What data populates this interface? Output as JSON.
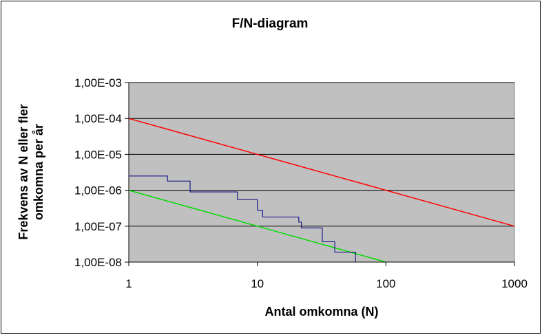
{
  "chart_data": {
    "type": "line",
    "title": "F/N-diagram",
    "xlabel": "Antal omkomna (N)",
    "ylabel_line1": "Frekvens av N eller fler",
    "ylabel_line2": "omkomna per år",
    "x_scale": "log",
    "y_scale": "log",
    "xlim": [
      1,
      1000
    ],
    "ylim": [
      1e-08,
      0.001
    ],
    "x_ticks": [
      {
        "value": 1,
        "label": "1"
      },
      {
        "value": 10,
        "label": "10"
      },
      {
        "value": 100,
        "label": "100"
      },
      {
        "value": 1000,
        "label": "1000"
      }
    ],
    "y_ticks": [
      {
        "value": 0.001,
        "label": "1,00E-03"
      },
      {
        "value": 0.0001,
        "label": "1,00E-04"
      },
      {
        "value": 1e-05,
        "label": "1,00E-05"
      },
      {
        "value": 1e-06,
        "label": "1,00E-06"
      },
      {
        "value": 1e-07,
        "label": "1,00E-07"
      },
      {
        "value": 1e-08,
        "label": "1,00E-08"
      }
    ],
    "grid": "horizontal",
    "plot_background": "#c0c0c0",
    "series": [
      {
        "style": "line",
        "color": "#ff0000",
        "points": [
          [
            1,
            0.0001
          ],
          [
            1000,
            1e-07
          ]
        ]
      },
      {
        "style": "line",
        "color": "#00dd00",
        "points": [
          [
            1,
            1e-06
          ],
          [
            100,
            1e-08
          ]
        ]
      },
      {
        "style": "step",
        "color": "#000080",
        "points": [
          [
            1,
            2.5e-06
          ],
          [
            2,
            2.5e-06
          ],
          [
            2,
            1.8e-06
          ],
          [
            3,
            1.8e-06
          ],
          [
            3,
            9e-07
          ],
          [
            7,
            9e-07
          ],
          [
            7,
            5.5e-07
          ],
          [
            10,
            5.5e-07
          ],
          [
            10,
            2.8e-07
          ],
          [
            11,
            2.8e-07
          ],
          [
            11,
            1.8e-07
          ],
          [
            21,
            1.8e-07
          ],
          [
            21,
            1.3e-07
          ],
          [
            22,
            1.3e-07
          ],
          [
            22,
            9e-08
          ],
          [
            32,
            9e-08
          ],
          [
            32,
            3.7e-08
          ],
          [
            40,
            3.7e-08
          ],
          [
            40,
            1.9e-08
          ],
          [
            58,
            1.9e-08
          ],
          [
            58,
            1e-08
          ]
        ]
      }
    ]
  }
}
